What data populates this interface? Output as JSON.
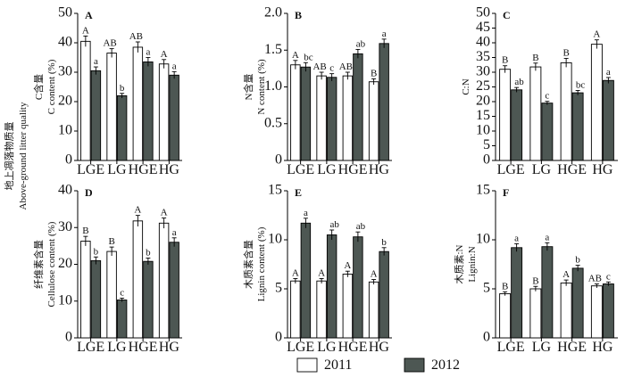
{
  "figure": {
    "side_label_cn": "地上凋落物质量",
    "side_label_en": "Above-ground litter quality"
  },
  "legend": {
    "items": [
      {
        "label": "2011",
        "color": "#ffffff"
      },
      {
        "label": "2012",
        "color": "#4d5753"
      }
    ]
  },
  "colors": {
    "series_2011": "#ffffff",
    "series_2012": "#4d5753",
    "axis": "#000000"
  },
  "chart_data": [
    {
      "type": "bar",
      "panel_label": "A",
      "ylabel_cn": "C含量",
      "ylabel_en": "C content (%)",
      "ylim": [
        0,
        50
      ],
      "yticks": [
        "0",
        "10",
        "20",
        "30",
        "40",
        "50"
      ],
      "categories": [
        "LGE",
        "LG",
        "HGE",
        "HG"
      ],
      "show_xticks": true,
      "series": [
        {
          "name": "2011",
          "values": [
            40.5,
            36.5,
            38.5,
            32.8
          ],
          "errors": [
            1.8,
            1.5,
            1.8,
            1.5
          ],
          "letters": [
            "A",
            "AB",
            "AB",
            "A"
          ]
        },
        {
          "name": "2012",
          "values": [
            30.5,
            22.0,
            33.5,
            29.0
          ],
          "errors": [
            1.3,
            0.8,
            1.5,
            1.2
          ],
          "letters": [
            "a",
            "b",
            "a",
            "a"
          ]
        }
      ]
    },
    {
      "type": "bar",
      "panel_label": "B",
      "ylabel_cn": "N含量",
      "ylabel_en": "N content (%)",
      "ylim": [
        0,
        2.0
      ],
      "yticks": [
        "0",
        "0.5",
        "1.0",
        "1.5",
        "2.0"
      ],
      "categories": [
        "LGE",
        "LG",
        "HGE",
        "HG"
      ],
      "show_xticks": true,
      "series": [
        {
          "name": "2011",
          "values": [
            1.3,
            1.15,
            1.15,
            1.07
          ],
          "errors": [
            0.06,
            0.05,
            0.05,
            0.04
          ],
          "letters": [
            "A",
            "AB",
            "AB",
            "B"
          ]
        },
        {
          "name": "2012",
          "values": [
            1.27,
            1.13,
            1.45,
            1.59
          ],
          "errors": [
            0.06,
            0.05,
            0.06,
            0.06
          ],
          "letters": [
            "bc",
            "c",
            "ab",
            "a"
          ]
        }
      ]
    },
    {
      "type": "bar",
      "panel_label": "C",
      "ylabel_cn": "",
      "ylabel_en": "C:N",
      "ylim": [
        0,
        50
      ],
      "yticks": [
        "0",
        "5",
        "10",
        "15",
        "20",
        "25",
        "30",
        "35",
        "40",
        "45",
        "50"
      ],
      "categories": [
        "LGE",
        "LG",
        "HGE",
        "HG"
      ],
      "show_xticks": true,
      "series": [
        {
          "name": "2011",
          "values": [
            31.0,
            31.8,
            33.2,
            39.5
          ],
          "errors": [
            1.2,
            1.3,
            1.5,
            1.5
          ],
          "letters": [
            "B",
            "B",
            "B",
            "A"
          ]
        },
        {
          "name": "2012",
          "values": [
            24.0,
            19.5,
            23.0,
            27.2
          ],
          "errors": [
            0.8,
            0.6,
            0.8,
            1.0
          ],
          "letters": [
            "ab",
            "c",
            "bc",
            "a"
          ]
        }
      ]
    },
    {
      "type": "bar",
      "panel_label": "D",
      "ylabel_cn": "纤维素含量",
      "ylabel_en": "Cellulose content (%)",
      "ylim": [
        0,
        40
      ],
      "yticks": [
        "0",
        "10",
        "20",
        "30",
        "40"
      ],
      "categories": [
        "LGE",
        "LG",
        "HGE",
        "HG"
      ],
      "show_xticks": true,
      "series": [
        {
          "name": "2011",
          "values": [
            26.3,
            23.5,
            31.8,
            31.2
          ],
          "errors": [
            1.3,
            1.2,
            1.5,
            1.4
          ],
          "letters": [
            "B",
            "B",
            "A",
            "A"
          ]
        },
        {
          "name": "2012",
          "values": [
            21.0,
            10.3,
            20.8,
            26.0
          ],
          "errors": [
            1.0,
            0.5,
            0.9,
            1.2
          ],
          "letters": [
            "b",
            "c",
            "b",
            "a"
          ]
        }
      ]
    },
    {
      "type": "bar",
      "panel_label": "E",
      "ylabel_cn": "木质素含量",
      "ylabel_en": "Lignin content (%)",
      "ylim": [
        0,
        15
      ],
      "yticks": [
        "0",
        "5",
        "10",
        "15"
      ],
      "categories": [
        "LGE",
        "LG",
        "HGE",
        "HG"
      ],
      "show_xticks": true,
      "series": [
        {
          "name": "2011",
          "values": [
            5.8,
            5.8,
            6.5,
            5.7
          ],
          "errors": [
            0.25,
            0.25,
            0.3,
            0.25
          ],
          "letters": [
            "A",
            "A",
            "A",
            "A"
          ]
        },
        {
          "name": "2012",
          "values": [
            11.7,
            10.5,
            10.3,
            8.8
          ],
          "errors": [
            0.5,
            0.5,
            0.5,
            0.4
          ],
          "letters": [
            "a",
            "ab",
            "ab",
            "b"
          ]
        }
      ]
    },
    {
      "type": "bar",
      "panel_label": "F",
      "ylabel_cn": "木质素:N",
      "ylabel_en": "Lignin:N",
      "ylim": [
        0,
        15
      ],
      "yticks": [
        "0",
        "5",
        "10",
        "15"
      ],
      "categories": [
        "LGE",
        "LG",
        "HGE",
        "HG"
      ],
      "show_xticks": true,
      "series": [
        {
          "name": "2011",
          "values": [
            4.5,
            5.0,
            5.6,
            5.3
          ],
          "errors": [
            0.2,
            0.25,
            0.3,
            0.2
          ],
          "letters": [
            "B",
            "B",
            "A",
            "AB"
          ]
        },
        {
          "name": "2012",
          "values": [
            9.2,
            9.3,
            7.1,
            5.5
          ],
          "errors": [
            0.4,
            0.4,
            0.3,
            0.2
          ],
          "letters": [
            "a",
            "a",
            "b",
            "c"
          ]
        }
      ]
    }
  ]
}
